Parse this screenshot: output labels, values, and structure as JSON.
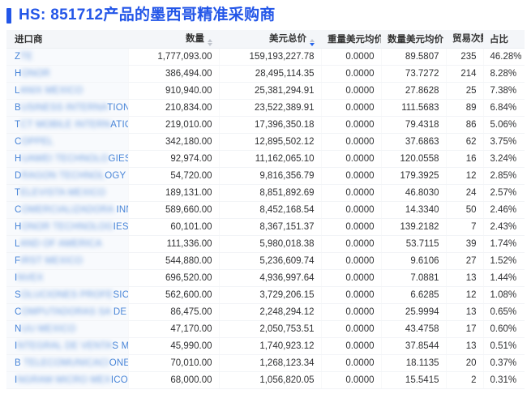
{
  "page": {
    "title": "HS: 851712产品的墨西哥精准采购商"
  },
  "colors": {
    "accent_blue": "#2356e8",
    "link_blue": "#4a86d8",
    "active_sort_blue": "#2563eb"
  },
  "table": {
    "columns": [
      {
        "key": "importer",
        "label": "进口商",
        "align": "left",
        "sortable": false,
        "sort": "none"
      },
      {
        "key": "qty",
        "label": "数量",
        "align": "right",
        "sortable": true,
        "sort": "none"
      },
      {
        "key": "usd_total",
        "label": "美元总价",
        "align": "right",
        "sortable": true,
        "sort": "desc"
      },
      {
        "key": "weight_avg",
        "label": "重量美元均价",
        "align": "right",
        "sortable": false,
        "sort": "none"
      },
      {
        "key": "qty_avg",
        "label": "数量美元均价",
        "align": "right",
        "sortable": false,
        "sort": "none"
      },
      {
        "key": "trades",
        "label": "贸易次数",
        "align": "right",
        "sortable": true,
        "sort": "none"
      },
      {
        "key": "share",
        "label": "占比",
        "align": "left",
        "sortable": false,
        "sort": "none"
      }
    ],
    "rows": [
      {
        "importer": {
          "prefix": "Z",
          "redacted": "TE",
          "suffix": ""
        },
        "qty": "1,777,093.00",
        "usd_total": "159,193,227.78",
        "weight_avg": "0.0000",
        "qty_avg": "89.5807",
        "trades": "235",
        "share": "46.28%"
      },
      {
        "importer": {
          "prefix": "H",
          "redacted": "ONOR",
          "suffix": ""
        },
        "qty": "386,494.00",
        "usd_total": "28,495,114.35",
        "weight_avg": "0.0000",
        "qty_avg": "73.7272",
        "trades": "214",
        "share": "8.28%"
      },
      {
        "importer": {
          "prefix": "L",
          "redacted": "ANIX MEXICO",
          "suffix": ""
        },
        "qty": "910,940.00",
        "usd_total": "25,381,294.91",
        "weight_avg": "0.0000",
        "qty_avg": "27.8628",
        "trades": "25",
        "share": "7.38%"
      },
      {
        "importer": {
          "prefix": "B",
          "redacted": "USINESS INTERNA",
          "suffix": "TIONAL"
        },
        "qty": "210,834.00",
        "usd_total": "23,522,389.91",
        "weight_avg": "0.0000",
        "qty_avg": "111.5683",
        "trades": "89",
        "share": "6.84%"
      },
      {
        "importer": {
          "prefix": "T",
          "redacted": "CT MOBILE INTERN",
          "suffix": "ATIO..."
        },
        "qty": "219,010.00",
        "usd_total": "17,396,350.18",
        "weight_avg": "0.0000",
        "qty_avg": "79.4318",
        "trades": "86",
        "share": "5.06%"
      },
      {
        "importer": {
          "prefix": "C",
          "redacted": "OPPEL",
          "suffix": ""
        },
        "qty": "342,180.00",
        "usd_total": "12,895,502.12",
        "weight_avg": "0.0000",
        "qty_avg": "37.6863",
        "trades": "62",
        "share": "3.75%"
      },
      {
        "importer": {
          "prefix": "H",
          "redacted": "UAWEI TECHNOLO",
          "suffix": "GIES ..."
        },
        "qty": "92,974.00",
        "usd_total": "11,162,065.10",
        "weight_avg": "0.0000",
        "qty_avg": "120.0558",
        "trades": "16",
        "share": "3.24%"
      },
      {
        "importer": {
          "prefix": "D",
          "redacted": "RAGON TECHNOL",
          "suffix": "OGY"
        },
        "qty": "54,720.00",
        "usd_total": "9,816,356.79",
        "weight_avg": "0.0000",
        "qty_avg": "179.3925",
        "trades": "12",
        "share": "2.85%"
      },
      {
        "importer": {
          "prefix": "T",
          "redacted": "ELEVISTA MEXICO",
          "suffix": ""
        },
        "qty": "189,131.00",
        "usd_total": "8,851,892.69",
        "weight_avg": "0.0000",
        "qty_avg": "46.8030",
        "trades": "24",
        "share": "2.57%"
      },
      {
        "importer": {
          "prefix": "C",
          "redacted": "OMERCIALIZADORA",
          "suffix": " INN..."
        },
        "qty": "589,660.00",
        "usd_total": "8,452,168.54",
        "weight_avg": "0.0000",
        "qty_avg": "14.3340",
        "trades": "50",
        "share": "2.46%"
      },
      {
        "importer": {
          "prefix": "H",
          "redacted": "ONOR TECHNOLOG",
          "suffix": "IES D..."
        },
        "qty": "60,101.00",
        "usd_total": "8,367,151.37",
        "weight_avg": "0.0000",
        "qty_avg": "139.2182",
        "trades": "7",
        "share": "2.43%"
      },
      {
        "importer": {
          "prefix": "L",
          "redacted": "AND OF AMERICA",
          "suffix": ""
        },
        "qty": "111,336.00",
        "usd_total": "5,980,018.38",
        "weight_avg": "0.0000",
        "qty_avg": "53.7115",
        "trades": "39",
        "share": "1.74%"
      },
      {
        "importer": {
          "prefix": "F",
          "redacted": "IRST MEXICO",
          "suffix": ""
        },
        "qty": "544,880.00",
        "usd_total": "5,236,609.74",
        "weight_avg": "0.0000",
        "qty_avg": "9.6106",
        "trades": "27",
        "share": "1.52%"
      },
      {
        "importer": {
          "prefix": "I",
          "redacted": "NVEX",
          "suffix": ""
        },
        "qty": "696,520.00",
        "usd_total": "4,936,997.64",
        "weight_avg": "0.0000",
        "qty_avg": "7.0881",
        "trades": "13",
        "share": "1.44%"
      },
      {
        "importer": {
          "prefix": "S",
          "redacted": "OLUCIONES PROFE",
          "suffix": "SION..."
        },
        "qty": "562,600.00",
        "usd_total": "3,729,206.15",
        "weight_avg": "0.0000",
        "qty_avg": "6.6285",
        "trades": "12",
        "share": "1.08%"
      },
      {
        "importer": {
          "prefix": "C",
          "redacted": "OMPUTADORAS SA",
          "suffix": " DE ..."
        },
        "qty": "86,475.00",
        "usd_total": "2,248,294.12",
        "weight_avg": "0.0000",
        "qty_avg": "25.9994",
        "trades": "13",
        "share": "0.65%"
      },
      {
        "importer": {
          "prefix": "N",
          "redacted": "UU MEXICO",
          "suffix": ""
        },
        "qty": "47,170.00",
        "usd_total": "2,050,753.51",
        "weight_avg": "0.0000",
        "qty_avg": "43.4758",
        "trades": "17",
        "share": "0.60%"
      },
      {
        "importer": {
          "prefix": "I",
          "redacted": "NTEGRAL DE VENTA",
          "suffix": "S MA..."
        },
        "qty": "45,990.00",
        "usd_total": "1,740,923.12",
        "weight_avg": "0.0000",
        "qty_avg": "37.8544",
        "trades": "13",
        "share": "0.51%"
      },
      {
        "importer": {
          "prefix": "B",
          "redacted": " TELECOMUNICACI",
          "suffix": "ONES..."
        },
        "qty": "70,010.00",
        "usd_total": "1,268,123.34",
        "weight_avg": "0.0000",
        "qty_avg": "18.1135",
        "trades": "20",
        "share": "0.37%"
      },
      {
        "importer": {
          "prefix": "I",
          "redacted": "NGRAM MICRO MEX",
          "suffix": "ICO"
        },
        "qty": "68,000.00",
        "usd_total": "1,056,820.05",
        "weight_avg": "0.0000",
        "qty_avg": "15.5415",
        "trades": "2",
        "share": "0.31%"
      }
    ]
  }
}
